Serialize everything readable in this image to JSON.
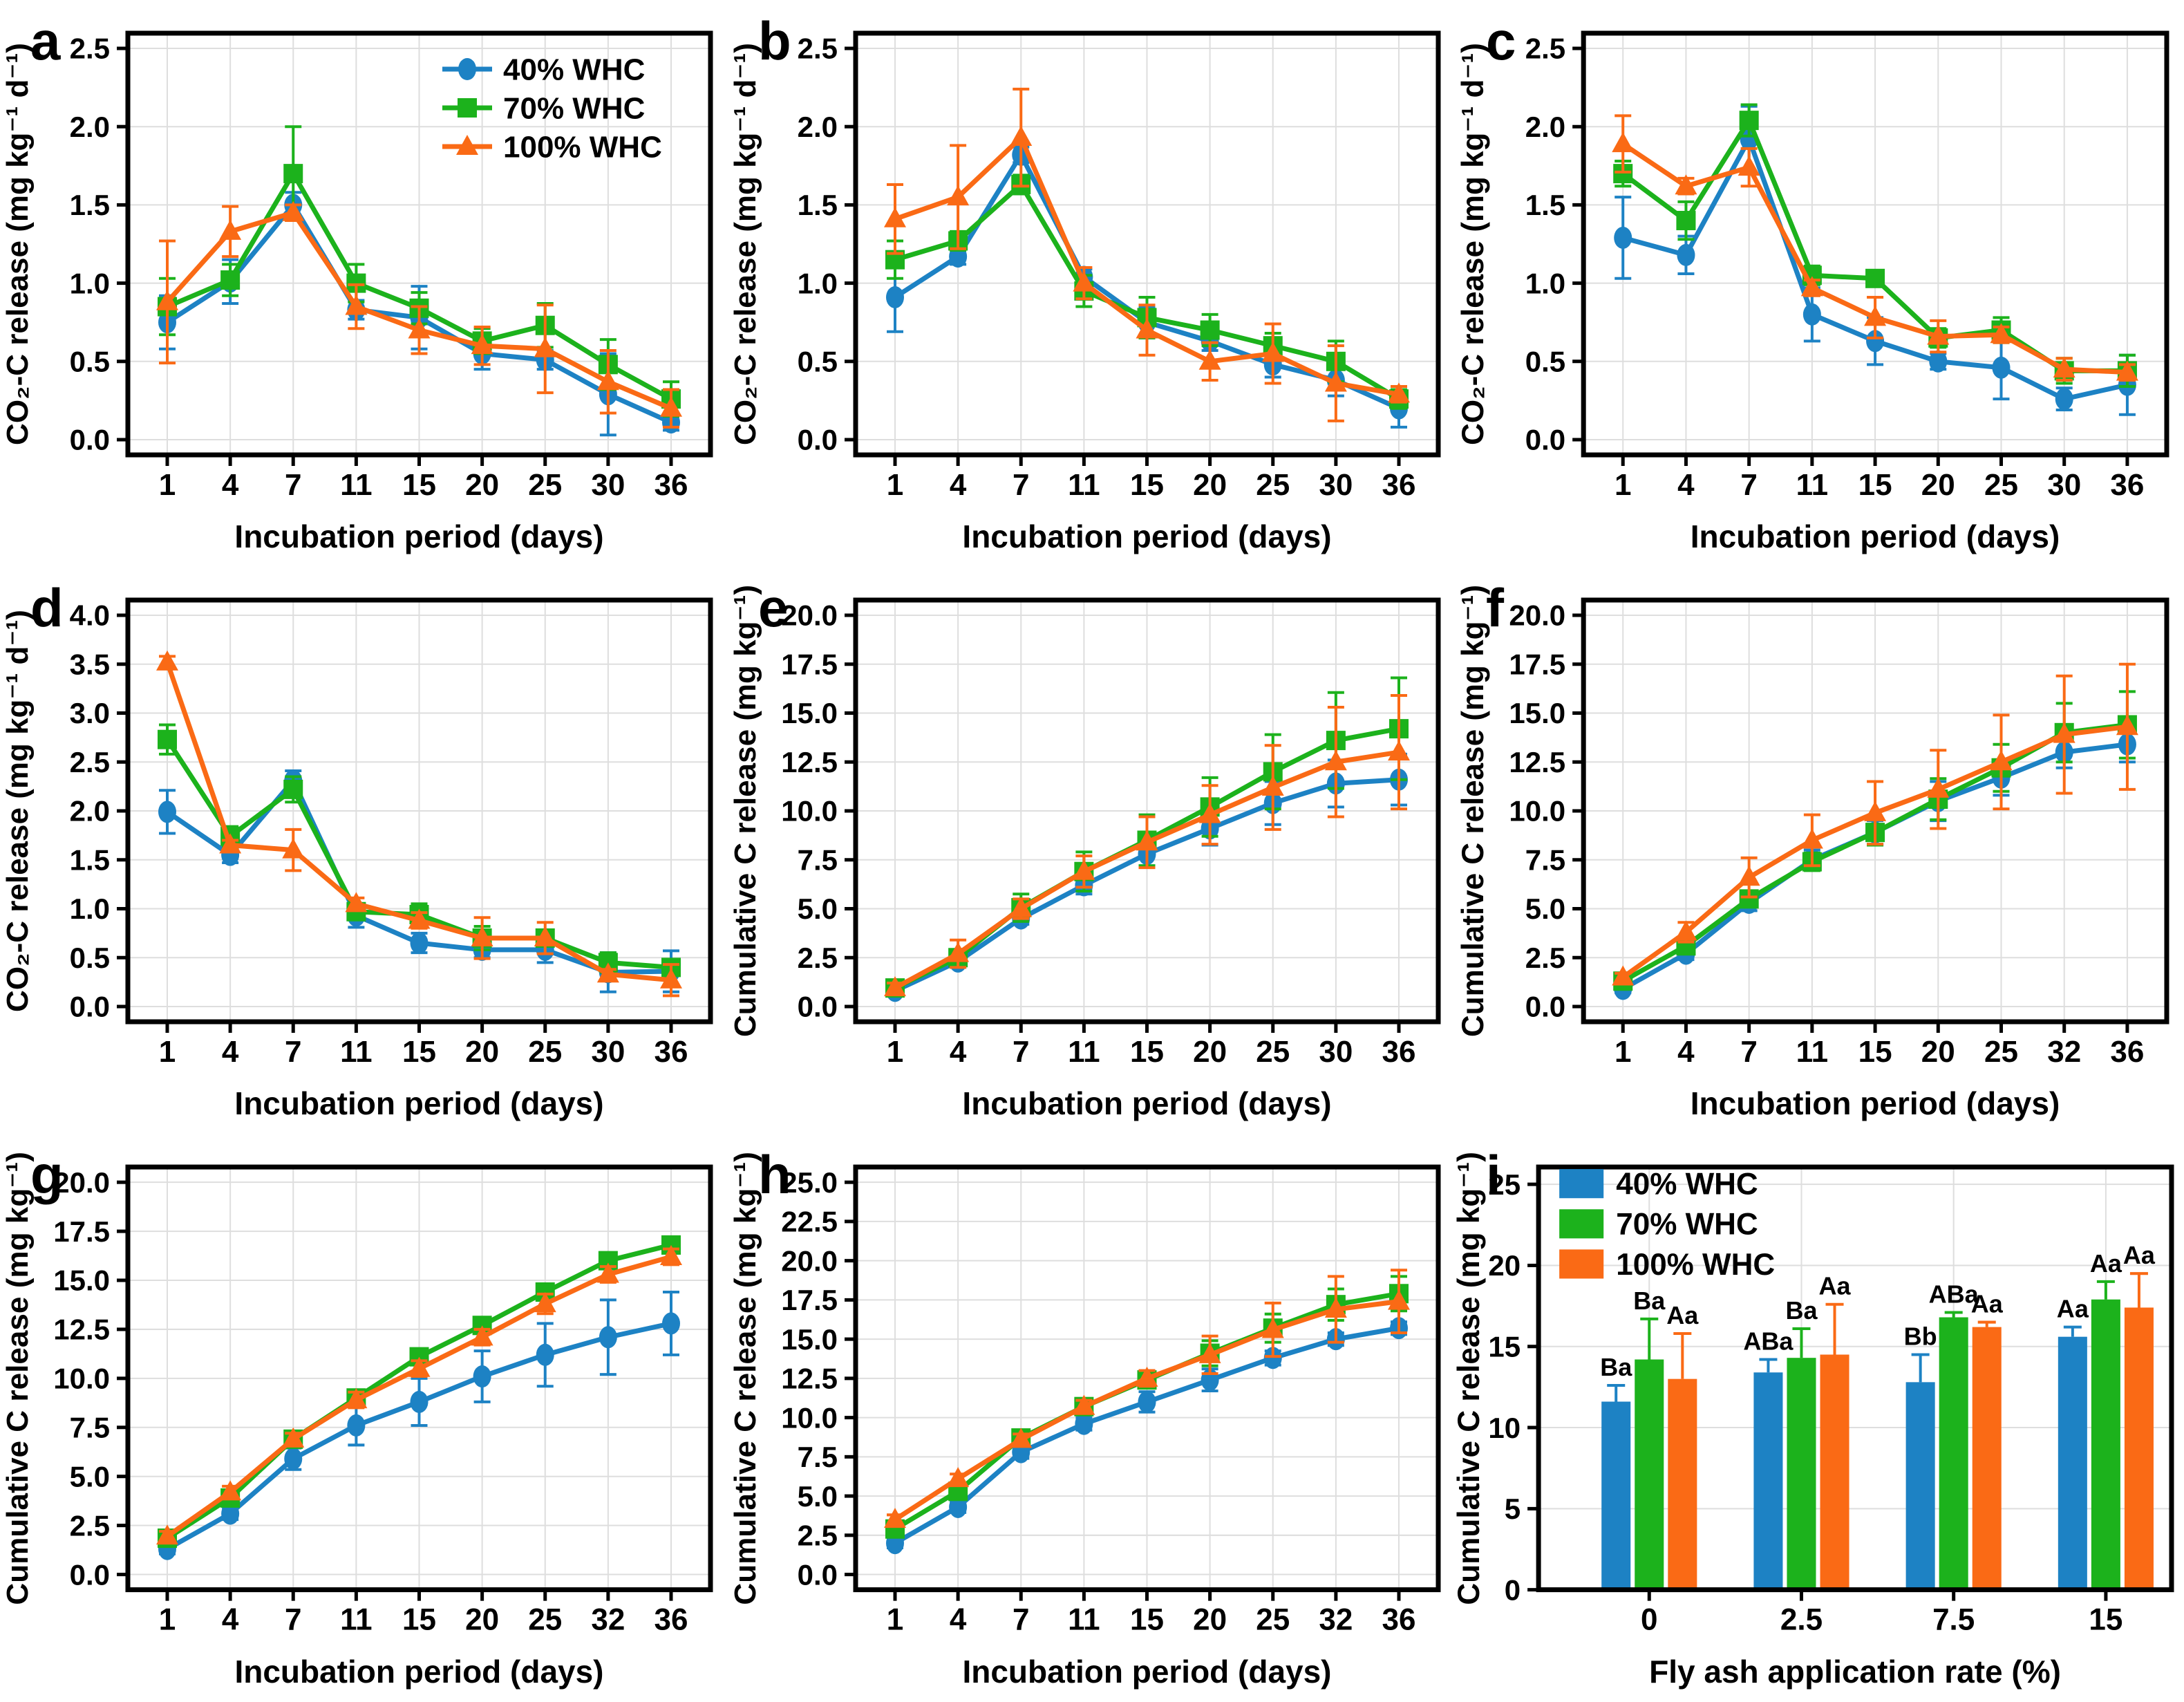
{
  "figure": {
    "background": "#ffffff",
    "grid_color": "#dedede",
    "series_names": [
      "40% WHC",
      "70% WHC",
      "100% WHC"
    ],
    "colors": {
      "40% WHC": "#1d82c4",
      "70% WHC": "#1cb21c",
      "100% WHC": "#fa6a15"
    },
    "markers": {
      "40% WHC": "circle",
      "70% WHC": "square",
      "100% WHC": "triangle"
    }
  },
  "chart_data": [
    {
      "id": "a",
      "type": "line",
      "show_legend": true,
      "xlabel": "Incubation period (days)",
      "ylabel": "CO₂-C release (mg kg⁻¹ d⁻¹)",
      "categories": [
        "1",
        "4",
        "7",
        "11",
        "15",
        "20",
        "25",
        "30",
        "36"
      ],
      "ylim": [
        0,
        2.5
      ],
      "ystep": 0.5,
      "ydecimals": 1,
      "series": [
        {
          "name": "40% WHC",
          "values": [
            0.75,
            1.01,
            1.5,
            0.83,
            0.78,
            0.55,
            0.51,
            0.29,
            0.11
          ],
          "errors": [
            0.17,
            0.14,
            0.08,
            0.06,
            0.2,
            0.1,
            0.06,
            0.26,
            0.05
          ]
        },
        {
          "name": "70% WHC",
          "values": [
            0.85,
            1.02,
            1.7,
            1.0,
            0.84,
            0.63,
            0.73,
            0.48,
            0.26
          ],
          "errors": [
            0.18,
            0.1,
            0.3,
            0.12,
            0.1,
            0.08,
            0.14,
            0.16,
            0.11
          ]
        },
        {
          "name": "100% WHC",
          "values": [
            0.88,
            1.33,
            1.45,
            0.85,
            0.7,
            0.6,
            0.58,
            0.37,
            0.2
          ],
          "errors": [
            0.39,
            0.16,
            0.05,
            0.14,
            0.15,
            0.12,
            0.28,
            0.2,
            0.12
          ]
        }
      ]
    },
    {
      "id": "b",
      "type": "line",
      "show_legend": false,
      "xlabel": "Incubation period (days)",
      "ylabel": "CO₂-C release (mg kg⁻¹ d⁻¹)",
      "categories": [
        "1",
        "4",
        "7",
        "11",
        "15",
        "20",
        "25",
        "30",
        "36"
      ],
      "ylim": [
        0,
        2.5
      ],
      "ystep": 0.5,
      "ydecimals": 1,
      "series": [
        {
          "name": "40% WHC",
          "values": [
            0.91,
            1.17,
            1.82,
            1.04,
            0.75,
            0.63,
            0.48,
            0.38,
            0.2
          ],
          "errors": [
            0.22,
            0.05,
            0.05,
            0.05,
            0.1,
            0.06,
            0.08,
            0.1,
            0.12
          ]
        },
        {
          "name": "70% WHC",
          "values": [
            1.15,
            1.27,
            1.63,
            0.95,
            0.78,
            0.7,
            0.6,
            0.5,
            0.26
          ],
          "errors": [
            0.12,
            0.06,
            0.06,
            0.1,
            0.13,
            0.1,
            0.08,
            0.13,
            0.06
          ]
        },
        {
          "name": "100% WHC",
          "values": [
            1.41,
            1.55,
            1.93,
            1.0,
            0.7,
            0.5,
            0.55,
            0.36,
            0.29
          ],
          "errors": [
            0.22,
            0.33,
            0.31,
            0.1,
            0.16,
            0.12,
            0.19,
            0.24,
            0.05
          ]
        }
      ]
    },
    {
      "id": "c",
      "type": "line",
      "show_legend": false,
      "xlabel": "Incubation period (days)",
      "ylabel": "CO₂-C release (mg kg⁻¹ d⁻¹)",
      "categories": [
        "1",
        "4",
        "7",
        "11",
        "15",
        "20",
        "25",
        "30",
        "36"
      ],
      "ylim": [
        0,
        2.5
      ],
      "ystep": 0.5,
      "ydecimals": 1,
      "series": [
        {
          "name": "40% WHC",
          "values": [
            1.29,
            1.18,
            1.92,
            0.8,
            0.63,
            0.5,
            0.46,
            0.26,
            0.35
          ],
          "errors": [
            0.26,
            0.12,
            0.21,
            0.17,
            0.15,
            0.05,
            0.2,
            0.07,
            0.19
          ]
        },
        {
          "name": "70% WHC",
          "values": [
            1.7,
            1.4,
            2.04,
            1.05,
            1.03,
            0.65,
            0.7,
            0.44,
            0.44
          ],
          "errors": [
            0.08,
            0.12,
            0.1,
            0.06,
            0.05,
            0.06,
            0.08,
            0.08,
            0.1
          ]
        },
        {
          "name": "100% WHC",
          "values": [
            1.89,
            1.62,
            1.74,
            0.97,
            0.78,
            0.66,
            0.67,
            0.45,
            0.43
          ],
          "errors": [
            0.18,
            0.05,
            0.12,
            0.05,
            0.13,
            0.1,
            0.05,
            0.07,
            0.05
          ]
        }
      ]
    },
    {
      "id": "d",
      "type": "line",
      "show_legend": false,
      "xlabel": "Incubation period (days)",
      "ylabel": "CO₂-C release (mg kg⁻¹ d⁻¹)",
      "categories": [
        "1",
        "4",
        "7",
        "11",
        "15",
        "20",
        "25",
        "30",
        "36"
      ],
      "ylim": [
        0,
        4.0
      ],
      "ystep": 0.5,
      "ydecimals": 1,
      "series": [
        {
          "name": "40% WHC",
          "values": [
            1.99,
            1.55,
            2.31,
            0.93,
            0.65,
            0.58,
            0.58,
            0.35,
            0.36
          ],
          "errors": [
            0.22,
            0.08,
            0.1,
            0.12,
            0.1,
            0.08,
            0.13,
            0.2,
            0.21
          ]
        },
        {
          "name": "70% WHC",
          "values": [
            2.73,
            1.74,
            2.22,
            0.97,
            0.94,
            0.7,
            0.7,
            0.45,
            0.4
          ],
          "errors": [
            0.15,
            0.1,
            0.13,
            0.06,
            0.11,
            0.12,
            0.06,
            0.1,
            0.08
          ]
        },
        {
          "name": "100% WHC",
          "values": [
            3.52,
            1.65,
            1.6,
            1.05,
            0.88,
            0.7,
            0.7,
            0.33,
            0.27
          ],
          "errors": [
            0.06,
            0.05,
            0.21,
            0.06,
            0.08,
            0.21,
            0.16,
            0.05,
            0.16
          ]
        }
      ]
    },
    {
      "id": "e",
      "type": "line",
      "show_legend": false,
      "xlabel": "Incubation period (days)",
      "ylabel": "Cumulative C release (mg kg⁻¹)",
      "categories": [
        "1",
        "4",
        "7",
        "11",
        "15",
        "20",
        "25",
        "30",
        "36"
      ],
      "ylim": [
        0,
        20.0
      ],
      "ystep": 2.5,
      "ydecimals": 1,
      "series": [
        {
          "name": "40% WHC",
          "values": [
            0.8,
            2.3,
            4.5,
            6.2,
            7.8,
            9.1,
            10.4,
            11.4,
            11.6
          ],
          "errors": [
            0.25,
            0.3,
            0.3,
            0.45,
            0.6,
            0.85,
            1.1,
            1.2,
            1.3
          ]
        },
        {
          "name": "70% WHC",
          "values": [
            0.95,
            2.5,
            5.05,
            6.9,
            8.5,
            10.2,
            12.0,
            13.6,
            14.2
          ],
          "errors": [
            0.25,
            0.3,
            0.7,
            1.0,
            1.3,
            1.5,
            1.9,
            2.45,
            2.6
          ]
        },
        {
          "name": "100% WHC",
          "values": [
            0.95,
            2.7,
            5.0,
            6.9,
            8.4,
            9.8,
            11.2,
            12.5,
            13.0
          ],
          "errors": [
            0.25,
            0.7,
            0.5,
            0.8,
            1.3,
            1.5,
            2.15,
            2.8,
            2.9
          ]
        }
      ]
    },
    {
      "id": "f",
      "type": "line",
      "show_legend": false,
      "xlabel": "Incubation period (days)",
      "ylabel": "Cumulative C release (mg kg⁻¹)",
      "categories": [
        "1",
        "4",
        "7",
        "11",
        "15",
        "20",
        "25",
        "32",
        "36"
      ],
      "ylim": [
        0,
        20.0
      ],
      "ystep": 2.5,
      "ydecimals": 1,
      "series": [
        {
          "name": "40% WHC",
          "values": [
            0.9,
            2.7,
            5.3,
            7.5,
            8.9,
            10.5,
            11.7,
            13.0,
            13.4
          ],
          "errors": [
            0.2,
            0.3,
            0.4,
            0.5,
            0.6,
            1.0,
            0.9,
            0.8,
            0.9
          ]
        },
        {
          "name": "70% WHC",
          "values": [
            1.3,
            3.1,
            5.5,
            7.4,
            8.9,
            10.6,
            12.2,
            14.0,
            14.4
          ],
          "errors": [
            0.2,
            0.3,
            0.4,
            0.45,
            0.65,
            1.05,
            1.2,
            1.5,
            1.7
          ]
        },
        {
          "name": "100% WHC",
          "values": [
            1.5,
            3.8,
            6.6,
            8.5,
            9.9,
            11.1,
            12.5,
            13.9,
            14.3
          ],
          "errors": [
            0.2,
            0.5,
            1.0,
            1.3,
            1.6,
            2.0,
            2.4,
            3.0,
            3.2
          ]
        }
      ]
    },
    {
      "id": "g",
      "type": "line",
      "show_legend": false,
      "xlabel": "Incubation period (days)",
      "ylabel": "Cumulative C release (mg kg⁻¹)",
      "categories": [
        "1",
        "4",
        "7",
        "11",
        "15",
        "20",
        "25",
        "32",
        "36"
      ],
      "ylim": [
        0,
        20.0
      ],
      "ystep": 2.5,
      "ydecimals": 1,
      "series": [
        {
          "name": "40% WHC",
          "values": [
            1.3,
            3.1,
            5.9,
            7.6,
            8.8,
            10.1,
            11.2,
            12.1,
            12.8
          ],
          "errors": [
            0.25,
            0.3,
            0.55,
            1.0,
            1.2,
            1.3,
            1.6,
            1.9,
            1.6
          ]
        },
        {
          "name": "70% WHC",
          "values": [
            1.85,
            3.9,
            6.9,
            9.0,
            11.1,
            12.7,
            14.4,
            16.0,
            16.8
          ],
          "errors": [
            0.2,
            0.25,
            0.3,
            0.4,
            0.4,
            0.35,
            0.35,
            0.4,
            0.4
          ]
        },
        {
          "name": "100% WHC",
          "values": [
            1.95,
            4.2,
            6.9,
            8.9,
            10.5,
            12.1,
            13.8,
            15.3,
            16.2
          ],
          "errors": [
            0.25,
            0.3,
            0.3,
            0.4,
            0.4,
            0.4,
            0.5,
            0.4,
            0.4
          ]
        }
      ]
    },
    {
      "id": "h",
      "type": "line",
      "show_legend": false,
      "xlabel": "Incubation period (days)",
      "ylabel": "Cumulative C release (mg kg⁻¹)",
      "categories": [
        "1",
        "4",
        "7",
        "11",
        "15",
        "20",
        "25",
        "32",
        "36"
      ],
      "ylim": [
        0,
        25.0
      ],
      "ystep": 2.5,
      "ydecimals": 1,
      "series": [
        {
          "name": "40% WHC",
          "values": [
            2.0,
            4.3,
            7.8,
            9.6,
            11.0,
            12.4,
            13.8,
            15.0,
            15.7
          ],
          "errors": [
            0.3,
            0.35,
            0.4,
            0.4,
            0.65,
            0.7,
            0.45,
            0.4,
            0.4
          ]
        },
        {
          "name": "70% WHC",
          "values": [
            2.9,
            5.3,
            8.7,
            10.7,
            12.4,
            14.1,
            15.7,
            17.2,
            17.9
          ],
          "errors": [
            0.3,
            0.3,
            0.35,
            0.4,
            0.45,
            0.8,
            0.9,
            1.0,
            1.1
          ]
        },
        {
          "name": "100% WHC",
          "values": [
            3.5,
            6.1,
            8.6,
            10.7,
            12.5,
            14.0,
            15.6,
            16.9,
            17.4
          ],
          "errors": [
            0.3,
            0.3,
            0.35,
            0.4,
            0.5,
            1.2,
            1.7,
            2.1,
            2.0
          ]
        }
      ]
    },
    {
      "id": "i",
      "type": "bar",
      "show_legend": true,
      "xlabel": "Fly ash application rate (%)",
      "ylabel": "Cumulative C release (mg kg⁻¹)",
      "categories": [
        "0",
        "2.5",
        "7.5",
        "15"
      ],
      "ylim": [
        0,
        25
      ],
      "ystep": 5,
      "ydecimals": 0,
      "series": [
        {
          "name": "40% WHC",
          "values": [
            11.6,
            13.4,
            12.8,
            15.6
          ],
          "errors": [
            1.0,
            0.8,
            1.7,
            0.6
          ],
          "sig_labels": [
            "Ba",
            "ABa",
            "Bb",
            "Aa"
          ]
        },
        {
          "name": "70% WHC",
          "values": [
            14.2,
            14.3,
            16.8,
            17.9
          ],
          "errors": [
            2.5,
            1.8,
            0.3,
            1.1
          ],
          "sig_labels": [
            "Ba",
            "Ba",
            "ABa",
            "Aa"
          ]
        },
        {
          "name": "100% WHC",
          "values": [
            13.0,
            14.5,
            16.2,
            17.4
          ],
          "errors": [
            2.8,
            3.1,
            0.3,
            2.1
          ],
          "sig_labels": [
            "Aa",
            "Aa",
            "Aa",
            "Aa"
          ]
        }
      ]
    }
  ]
}
